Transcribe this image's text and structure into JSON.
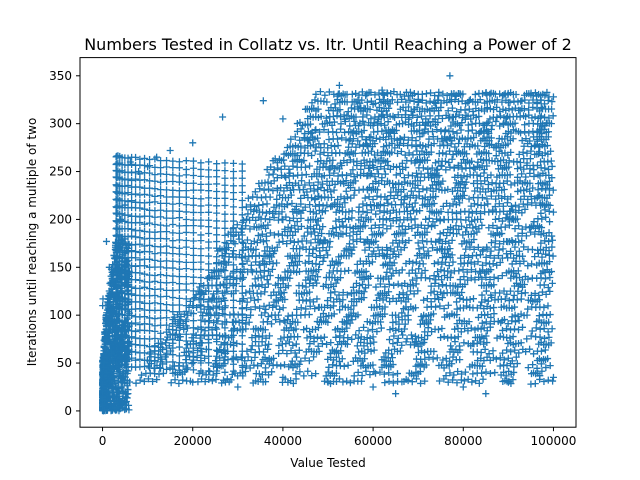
{
  "chart_data": {
    "type": "scatter",
    "title": "Numbers Tested in Collatz vs. Itr. Until Reaching a Power of 2",
    "xlabel": "Value Tested",
    "ylabel": "Iterations until reaching a multiple of two",
    "xlim": [
      -5000,
      105000
    ],
    "ylim": [
      -17,
      369
    ],
    "xticks": [
      0,
      20000,
      40000,
      60000,
      80000,
      100000
    ],
    "yticks": [
      0,
      50,
      100,
      150,
      200,
      250,
      300,
      350
    ],
    "grid": false,
    "marker": "plus",
    "color": "#1f77b4",
    "series": [
      {
        "name": "",
        "x_range": [
          1,
          100000
        ],
        "points": [
          [
            3,
            5
          ],
          [
            6,
            12
          ],
          [
            7,
            14
          ],
          [
            15,
            20
          ],
          [
            27,
            110
          ],
          [
            97,
            117
          ],
          [
            871,
            177
          ],
          [
            1000,
            40
          ],
          [
            1500,
            150
          ],
          [
            2000,
            60
          ],
          [
            2500,
            120
          ],
          [
            3000,
            175
          ],
          [
            3500,
            30
          ],
          [
            4000,
            200
          ],
          [
            4500,
            90
          ],
          [
            5000,
            215
          ],
          [
            6171,
            260
          ],
          [
            8000,
            250
          ],
          [
            10000,
            255
          ],
          [
            12000,
            265
          ],
          [
            15000,
            272
          ],
          [
            20000,
            280
          ],
          [
            26623,
            307
          ],
          [
            35655,
            324
          ],
          [
            40000,
            305
          ],
          [
            45000,
            315
          ],
          [
            52527,
            340
          ],
          [
            60000,
            320
          ],
          [
            62000,
            335
          ],
          [
            70000,
            323
          ],
          [
            77031,
            350
          ],
          [
            85000,
            332
          ],
          [
            90000,
            322
          ],
          [
            95000,
            330
          ],
          [
            99000,
            328
          ],
          [
            100000,
            328
          ],
          [
            60000,
            25
          ],
          [
            65000,
            18
          ],
          [
            80000,
            25
          ],
          [
            85000,
            18
          ],
          [
            90000,
            30
          ],
          [
            95000,
            28
          ],
          [
            100000,
            35
          ],
          [
            20000,
            30
          ],
          [
            30000,
            25
          ],
          [
            40000,
            35
          ],
          [
            50000,
            30
          ]
        ]
      }
    ],
    "bands": {
      "x_start": 6000,
      "x_end": 100000,
      "levels": [
        30,
        38,
        46,
        53,
        61,
        69,
        76,
        84,
        92,
        99,
        107,
        115,
        122,
        130,
        138,
        145,
        153,
        161,
        168,
        176,
        184,
        191,
        199,
        207,
        214,
        222,
        230,
        237,
        245,
        253,
        260,
        268,
        276,
        283,
        291,
        299,
        306,
        314,
        322,
        330
      ]
    }
  }
}
